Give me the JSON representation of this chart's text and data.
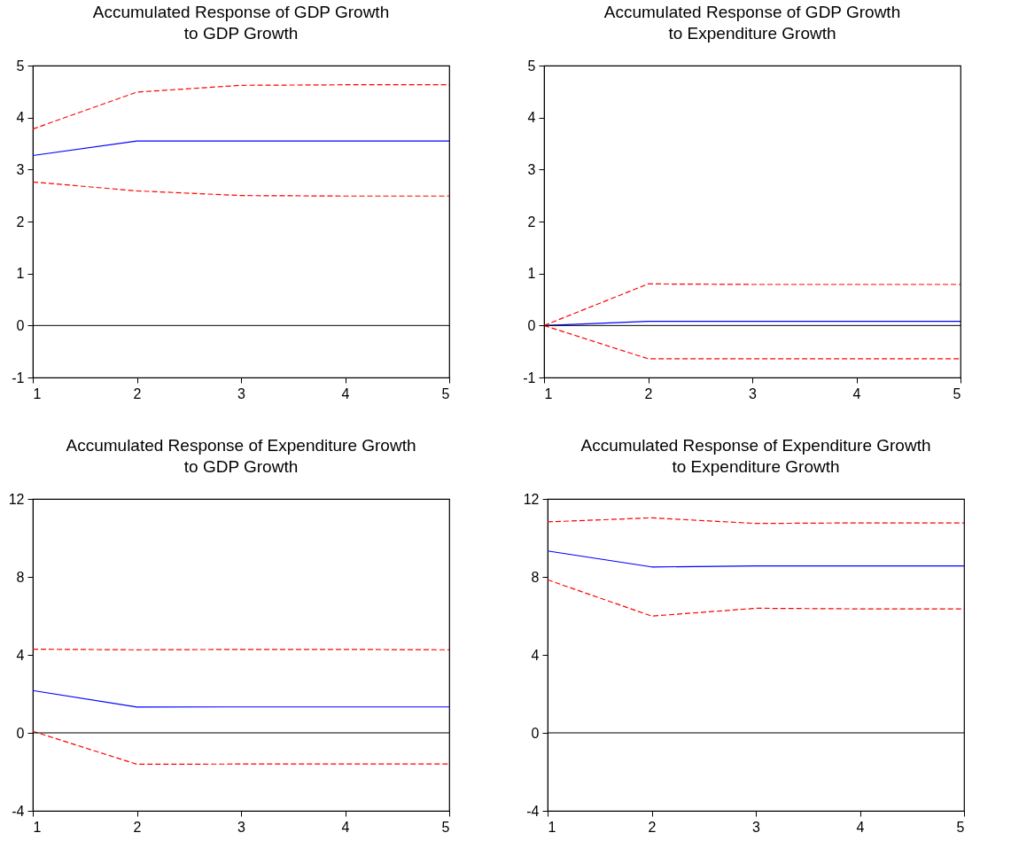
{
  "chart_data": [
    {
      "type": "line",
      "title": "Accumulated Response of GDP Growth\nto GDP Growth",
      "x": [
        1,
        2,
        3,
        4,
        5
      ],
      "xlim": [
        1,
        5
      ],
      "xticks": [
        1,
        2,
        3,
        4,
        5
      ],
      "ylim": [
        -1,
        5
      ],
      "yticks": [
        -1,
        0,
        1,
        2,
        3,
        4,
        5
      ],
      "grid": false,
      "legend": false,
      "ref_lines": [
        {
          "axis": "y",
          "value": 0,
          "color": "#000000"
        }
      ],
      "series": [
        {
          "color": "#0000ff",
          "line_style": "solid",
          "values": [
            3.27,
            3.55,
            3.55,
            3.55,
            3.55
          ]
        },
        {
          "color": "#ff0000",
          "line_style": "dashed",
          "values": [
            3.78,
            4.49,
            4.62,
            4.63,
            4.63
          ]
        },
        {
          "color": "#ff0000",
          "line_style": "dashed",
          "values": [
            2.76,
            2.59,
            2.5,
            2.49,
            2.49
          ]
        }
      ]
    },
    {
      "type": "line",
      "title": "Accumulated Response of GDP Growth\nto Expenditure Growth",
      "x": [
        1,
        2,
        3,
        4,
        5
      ],
      "xlim": [
        1,
        5
      ],
      "xticks": [
        1,
        2,
        3,
        4,
        5
      ],
      "ylim": [
        -1,
        5
      ],
      "yticks": [
        -1,
        0,
        1,
        2,
        3,
        4,
        5
      ],
      "grid": false,
      "legend": false,
      "ref_lines": [
        {
          "axis": "y",
          "value": 0,
          "color": "#000000"
        }
      ],
      "series": [
        {
          "color": "#0000ff",
          "line_style": "solid",
          "values": [
            0,
            0.08,
            0.08,
            0.08,
            0.08
          ]
        },
        {
          "color": "#ff0000",
          "line_style": "dashed",
          "values": [
            0,
            0.8,
            0.79,
            0.79,
            0.79
          ]
        },
        {
          "color": "#ff0000",
          "line_style": "dashed",
          "values": [
            0,
            -0.64,
            -0.64,
            -0.64,
            -0.64
          ]
        }
      ]
    },
    {
      "type": "line",
      "title": "Accumulated Response of Expenditure Growth\nto GDP Growth",
      "x": [
        1,
        2,
        3,
        4,
        5
      ],
      "xlim": [
        1,
        5
      ],
      "xticks": [
        1,
        2,
        3,
        4,
        5
      ],
      "ylim": [
        -4,
        12
      ],
      "yticks": [
        -4,
        0,
        4,
        8,
        12
      ],
      "grid": false,
      "legend": false,
      "ref_lines": [
        {
          "axis": "y",
          "value": 0,
          "color": "#000000"
        }
      ],
      "series": [
        {
          "color": "#0000ff",
          "line_style": "solid",
          "values": [
            2.17,
            1.32,
            1.33,
            1.33,
            1.33
          ]
        },
        {
          "color": "#ff0000",
          "line_style": "dashed",
          "values": [
            4.29,
            4.26,
            4.28,
            4.28,
            4.26
          ]
        },
        {
          "color": "#ff0000",
          "line_style": "dashed",
          "values": [
            0.08,
            -1.61,
            -1.6,
            -1.6,
            -1.6
          ]
        }
      ]
    },
    {
      "type": "line",
      "title": "Accumulated Response of Expenditure Growth\nto Expenditure Growth",
      "x": [
        1,
        2,
        3,
        4,
        5
      ],
      "xlim": [
        1,
        5
      ],
      "xticks": [
        1,
        2,
        3,
        4,
        5
      ],
      "ylim": [
        -4,
        12
      ],
      "yticks": [
        -4,
        0,
        4,
        8,
        12
      ],
      "grid": false,
      "legend": false,
      "ref_lines": [
        {
          "axis": "y",
          "value": 0,
          "color": "#000000"
        }
      ],
      "series": [
        {
          "color": "#0000ff",
          "line_style": "solid",
          "values": [
            9.33,
            8.51,
            8.56,
            8.56,
            8.56
          ]
        },
        {
          "color": "#ff0000",
          "line_style": "dashed",
          "values": [
            10.82,
            11.03,
            10.74,
            10.77,
            10.77
          ]
        },
        {
          "color": "#ff0000",
          "line_style": "dashed",
          "values": [
            7.85,
            5.99,
            6.39,
            6.36,
            6.36
          ]
        }
      ]
    }
  ]
}
